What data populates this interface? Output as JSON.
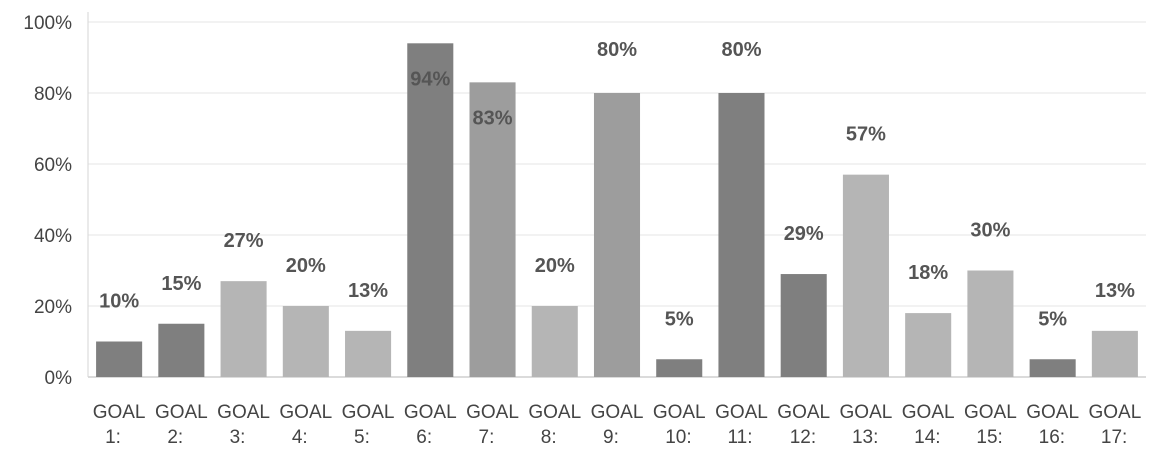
{
  "chart_data": {
    "type": "bar",
    "title": "",
    "xlabel": "",
    "ylabel": "",
    "ylim": [
      0,
      100
    ],
    "yticks": [
      "0%",
      "20%",
      "40%",
      "60%",
      "80%",
      "100%"
    ],
    "grid": "horizontal",
    "categories": [
      [
        "GOAL",
        "1:"
      ],
      [
        "GOAL",
        "2:"
      ],
      [
        "GOAL",
        "3:"
      ],
      [
        "GOAL",
        "4:"
      ],
      [
        "GOAL",
        "5:"
      ],
      [
        "GOAL",
        "6:"
      ],
      [
        "GOAL",
        "7:"
      ],
      [
        "GOAL",
        "8:"
      ],
      [
        "GOAL",
        "9:"
      ],
      [
        "GOAL",
        "10:"
      ],
      [
        "GOAL",
        "11:"
      ],
      [
        "GOAL",
        "12:"
      ],
      [
        "GOAL",
        "13:"
      ],
      [
        "GOAL",
        "14:"
      ],
      [
        "GOAL",
        "15:"
      ],
      [
        "GOAL",
        "16:"
      ],
      [
        "GOAL",
        "17:"
      ]
    ],
    "values": [
      10,
      15,
      27,
      20,
      13,
      94,
      83,
      20,
      80,
      5,
      80,
      29,
      57,
      18,
      30,
      5,
      13
    ],
    "data_labels": [
      "10%",
      "15%",
      "27%",
      "20%",
      "13%",
      "94%",
      "83%",
      "20%",
      "80%",
      "5%",
      "80%",
      "29%",
      "57%",
      "18%",
      "30%",
      "5%",
      "13%"
    ],
    "colors": [
      "#7f7f7f",
      "#7f7f7f",
      "#b5b5b5",
      "#b5b5b5",
      "#b5b5b5",
      "#7f7f7f",
      "#9d9d9d",
      "#b5b5b5",
      "#9d9d9d",
      "#7f7f7f",
      "#7f7f7f",
      "#7f7f7f",
      "#b5b5b5",
      "#b5b5b5",
      "#b5b5b5",
      "#7f7f7f",
      "#b5b5b5"
    ]
  }
}
